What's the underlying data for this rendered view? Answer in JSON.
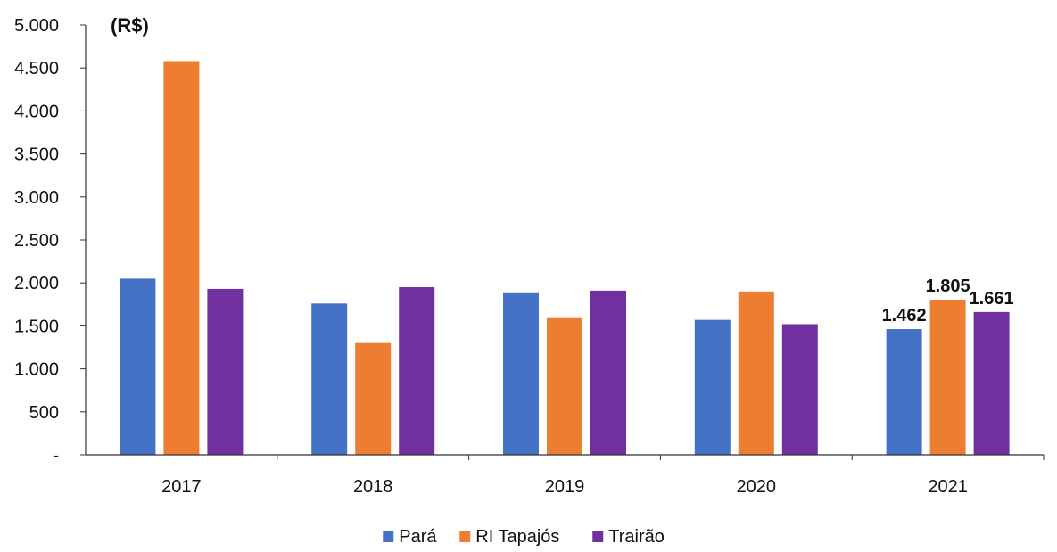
{
  "chart_data": {
    "type": "bar",
    "unit_label": "(R$)",
    "categories": [
      "2017",
      "2018",
      "2019",
      "2020",
      "2021"
    ],
    "series": [
      {
        "name": "Pará",
        "color": "#4472C4",
        "values": [
          2050,
          1760,
          1880,
          1570,
          1462
        ]
      },
      {
        "name": "RI Tapajós",
        "color": "#ED7D31",
        "values": [
          4580,
          1300,
          1590,
          1900,
          1805
        ]
      },
      {
        "name": "Trairão",
        "color": "#7030A0",
        "values": [
          1930,
          1950,
          1910,
          1520,
          1661
        ]
      }
    ],
    "data_labels": [
      {
        "series": 0,
        "category": 4,
        "text": "1.462"
      },
      {
        "series": 1,
        "category": 4,
        "text": "1.805"
      },
      {
        "series": 2,
        "category": 4,
        "text": "1.661"
      }
    ],
    "y_ticks": [
      {
        "value": 0,
        "label": "-"
      },
      {
        "value": 500,
        "label": "500"
      },
      {
        "value": 1000,
        "label": "1.000"
      },
      {
        "value": 1500,
        "label": "1.500"
      },
      {
        "value": 2000,
        "label": "2.000"
      },
      {
        "value": 2500,
        "label": "2.500"
      },
      {
        "value": 3000,
        "label": "3.000"
      },
      {
        "value": 3500,
        "label": "3.500"
      },
      {
        "value": 4000,
        "label": "4.000"
      },
      {
        "value": 4500,
        "label": "4.500"
      },
      {
        "value": 5000,
        "label": "5.000"
      }
    ],
    "ylim": [
      0,
      5000
    ],
    "grid": false,
    "legend_position": "bottom-center"
  }
}
